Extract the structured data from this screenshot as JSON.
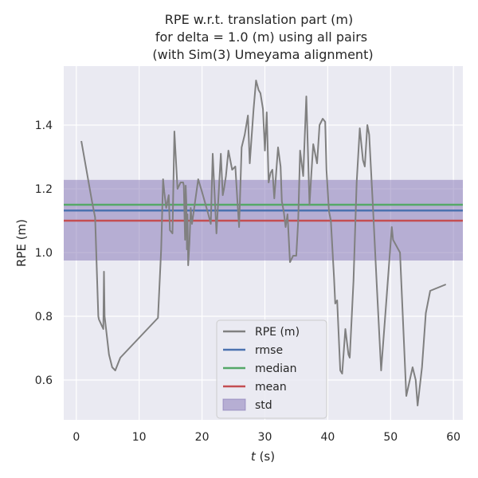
{
  "chart_data": {
    "type": "line",
    "title": [
      "RPE w.r.t. translation part (m)",
      "for delta = 1.0 (m) using all pairs",
      "(with Sim(3) Umeyama alignment)"
    ],
    "xlabel_italic": "t",
    "xlabel_unit": " (s)",
    "ylabel": "RPE (m)",
    "xlim": [
      -2,
      61.5
    ],
    "ylim": [
      0.475,
      1.585
    ],
    "xticks": [
      0,
      10,
      20,
      30,
      40,
      50,
      60
    ],
    "yticks": [
      0.6,
      0.8,
      1.0,
      1.2,
      1.4
    ],
    "ytick_labels": [
      "0.6",
      "0.8",
      "1.0",
      "1.2",
      "1.4"
    ],
    "grid": true,
    "legend_position": "lower-center",
    "stats": {
      "rmse": 1.132,
      "median": 1.15,
      "mean": 1.1,
      "std_range": [
        0.975,
        1.228
      ]
    },
    "series": [
      {
        "name": "RPE (m)",
        "x": [
          0.8,
          2.5,
          3.0,
          3.5,
          3.6,
          4.3,
          4.4,
          4.5,
          5.2,
          5.7,
          6.2,
          7.0,
          13.0,
          13.5,
          13.8,
          14.0,
          14.3,
          14.7,
          14.9,
          15.3,
          15.6,
          16.1,
          16.6,
          17.0,
          17.1,
          17.3,
          17.4,
          17.5,
          17.6,
          17.7,
          17.8,
          18.0,
          18.2,
          18.4,
          19.4,
          20.0,
          21.0,
          21.4,
          21.7,
          22.3,
          23.0,
          23.3,
          23.5,
          23.8,
          24.2,
          24.8,
          25.3,
          25.6,
          25.9,
          26.3,
          26.8,
          27.3,
          27.6,
          28.2,
          28.6,
          29.0,
          29.3,
          29.7,
          30.0,
          30.3,
          30.6,
          30.9,
          31.2,
          31.5,
          32.1,
          32.5,
          32.7,
          33.0,
          33.3,
          33.6,
          34.0,
          34.5,
          35.0,
          35.3,
          35.6,
          36.1,
          36.6,
          37.1,
          37.4,
          37.7,
          38.3,
          38.7,
          39.2,
          39.6,
          39.8,
          40.2,
          40.3,
          40.5,
          41.0,
          41.2,
          41.5,
          42.0,
          42.3,
          42.8,
          43.3,
          43.5,
          44.1,
          44.6,
          45.1,
          45.6,
          45.9,
          46.3,
          46.6,
          47.2,
          47.8,
          48.5,
          49.3,
          50.2,
          50.4,
          51.5,
          52.5,
          53.5,
          54.0,
          54.3,
          55.0,
          55.6,
          56.3,
          58.8
        ],
        "y": [
          1.35,
          1.16,
          1.11,
          0.8,
          0.79,
          0.76,
          0.94,
          0.8,
          0.68,
          0.64,
          0.63,
          0.67,
          0.795,
          1.01,
          1.23,
          1.19,
          1.14,
          1.18,
          1.07,
          1.06,
          1.38,
          1.2,
          1.22,
          1.22,
          1.21,
          1.04,
          1.21,
          1.16,
          1.01,
          1.12,
          0.96,
          1.03,
          1.14,
          1.09,
          1.23,
          1.19,
          1.12,
          1.09,
          1.31,
          1.06,
          1.31,
          1.18,
          1.2,
          1.24,
          1.32,
          1.26,
          1.27,
          1.17,
          1.08,
          1.33,
          1.37,
          1.43,
          1.28,
          1.45,
          1.54,
          1.51,
          1.5,
          1.45,
          1.32,
          1.44,
          1.22,
          1.25,
          1.26,
          1.17,
          1.33,
          1.27,
          1.16,
          1.13,
          1.08,
          1.12,
          0.97,
          0.99,
          0.99,
          1.1,
          1.32,
          1.24,
          1.49,
          1.15,
          1.25,
          1.34,
          1.28,
          1.4,
          1.42,
          1.41,
          1.26,
          1.13,
          1.12,
          1.1,
          0.92,
          0.84,
          0.85,
          0.63,
          0.62,
          0.76,
          0.68,
          0.67,
          0.91,
          1.22,
          1.39,
          1.29,
          1.27,
          1.4,
          1.37,
          1.14,
          0.9,
          0.63,
          0.84,
          1.08,
          1.04,
          1.0,
          0.55,
          0.64,
          0.6,
          0.52,
          0.64,
          0.81,
          0.88,
          0.9
        ]
      }
    ],
    "legend": [
      {
        "label": "RPE (m)",
        "kind": "line",
        "color": "#808080"
      },
      {
        "label": "rmse",
        "kind": "line",
        "color": "#4c72b0"
      },
      {
        "label": "median",
        "kind": "line",
        "color": "#55a868"
      },
      {
        "label": "mean",
        "kind": "line",
        "color": "#c44e52"
      },
      {
        "label": "std",
        "kind": "patch",
        "color": "#8172b3"
      }
    ],
    "colors": {
      "plot_bg": "#eaeaf2",
      "grid": "#ffffff",
      "rpe": "#808080",
      "rmse": "#4c72b0",
      "median": "#55a868",
      "mean": "#c44e52",
      "std": "#8172b3"
    }
  }
}
